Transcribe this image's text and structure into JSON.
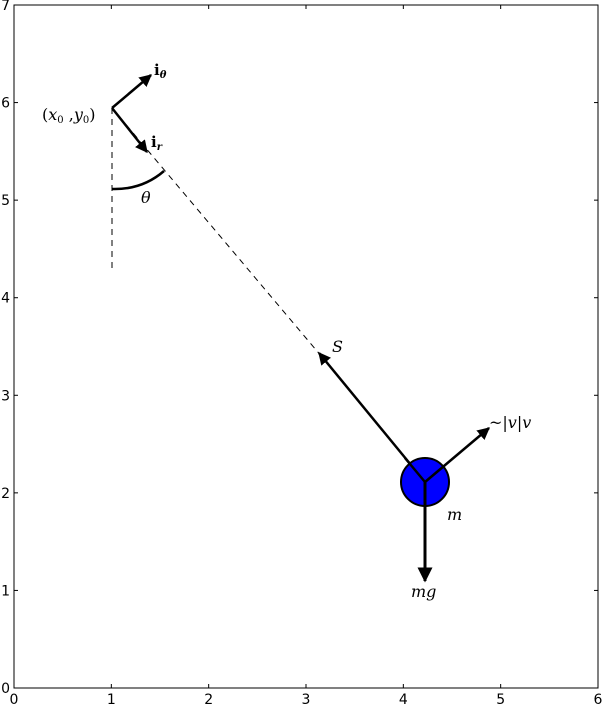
{
  "axes": {
    "xlim": [
      0,
      6
    ],
    "ylim": [
      0,
      7
    ],
    "x_ticks": [
      "0",
      "1",
      "2",
      "3",
      "4",
      "5",
      "6"
    ],
    "y_ticks": [
      "0",
      "1",
      "2",
      "3",
      "4",
      "5",
      "6",
      "7"
    ]
  },
  "labels": {
    "pivot": "(x0 ,y0 )",
    "pivot_x": "x",
    "pivot_x_sub": "0",
    "pivot_y": "y",
    "pivot_y_sub": "0",
    "i_theta": "i",
    "i_theta_sub": "θ",
    "i_r": "i",
    "i_r_sub": "r",
    "theta": "θ",
    "tension": "S",
    "drag": "~|v|v",
    "mass": "m",
    "gravity": "mg"
  },
  "colors": {
    "bob": "#0000ff",
    "lines": "#000000"
  }
}
